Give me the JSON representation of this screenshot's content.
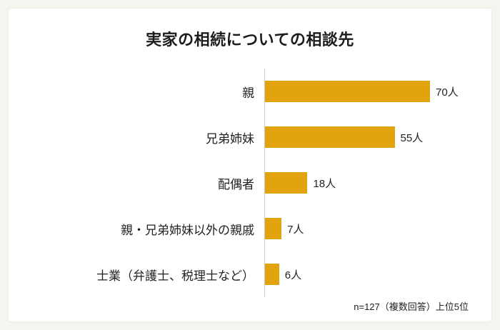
{
  "chart_data": {
    "type": "bar",
    "orientation": "horizontal",
    "title": "実家の相続についての相談先",
    "categories": [
      "親",
      "兄弟姉妹",
      "配偶者",
      "親・兄弟姉妹以外の親戚",
      "士業（弁護士、税理士など）"
    ],
    "values": [
      70,
      55,
      18,
      7,
      6
    ],
    "value_labels": [
      "70人",
      "55人",
      "18人",
      "7人",
      "6人"
    ],
    "unit": "人",
    "xlim": [
      0,
      97
    ],
    "note": "n=127（複数回答）上位5位",
    "bar_color": "#e2a40e",
    "legend": "none",
    "grid": "off"
  }
}
